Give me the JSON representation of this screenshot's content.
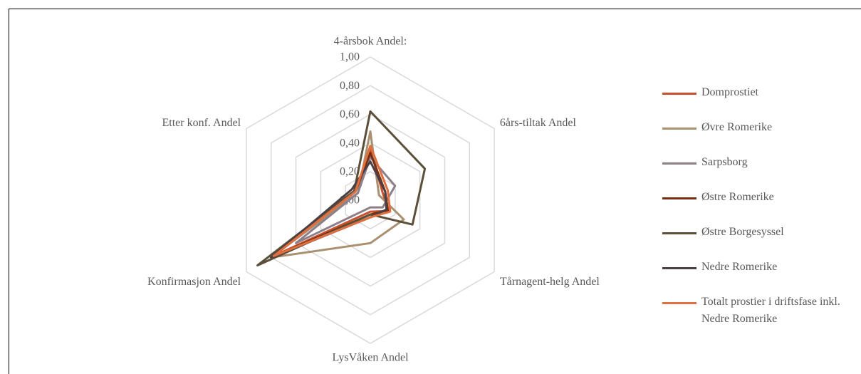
{
  "chart_data": {
    "type": "radar",
    "categories": [
      "4-årsbok Andel:",
      "6års-tiltak Andel",
      "Tårnagent-helg Andel",
      "LysVåken Andel",
      "Konfirmasjon  Andel",
      "Etter konf. Andel"
    ],
    "ylim": [
      0,
      1
    ],
    "yticks": [
      {
        "value": 0,
        "label": "0,00"
      },
      {
        "value": 0.2,
        "label": "0,20"
      },
      {
        "value": 0.4,
        "label": "0,40"
      },
      {
        "value": 0.6,
        "label": "0,60"
      },
      {
        "value": 0.8,
        "label": "0,80"
      },
      {
        "value": 1,
        "label": "1,00"
      }
    ],
    "grid": true,
    "legend": "right",
    "series": [
      {
        "name": "Domprostiet",
        "color": "#c8502a",
        "values": [
          0.36,
          0.1,
          0.15,
          0.08,
          0.78,
          0.12
        ]
      },
      {
        "name": "Øvre Romerike",
        "color": "#a89070",
        "values": [
          0.48,
          0.07,
          0.27,
          0.3,
          0.8,
          0.1
        ]
      },
      {
        "name": "Sarpsborg",
        "color": "#8c7f8a",
        "values": [
          0.3,
          0.2,
          0.1,
          0.05,
          0.6,
          0.1
        ]
      },
      {
        "name": "Østre Romerike",
        "color": "#7a2e10",
        "values": [
          0.33,
          0.12,
          0.14,
          0.1,
          0.8,
          0.12
        ]
      },
      {
        "name": "Østre Borgesyssel",
        "color": "#5c4f3a",
        "values": [
          0.62,
          0.44,
          0.34,
          0.1,
          0.91,
          0.13
        ]
      },
      {
        "name": "Nedre Romerike",
        "color": "#4a3f45",
        "values": [
          0.27,
          0.12,
          0.13,
          0.12,
          0.8,
          0.15
        ]
      },
      {
        "name": "Totalt prostier i driftsfase inkl. Nedre Romerike",
        "color": "#e07040",
        "values": [
          0.38,
          0.14,
          0.16,
          0.12,
          0.78,
          0.12
        ]
      }
    ]
  }
}
